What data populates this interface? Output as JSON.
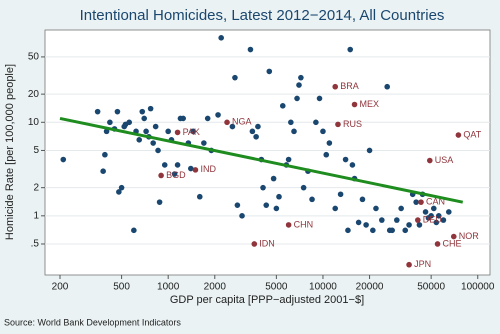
{
  "chart_data": {
    "type": "scatter",
    "title": "Intentional Homicides, Latest 2012−2014, All Countries",
    "x_label": "GDP per capita [PPP−adjusted 2001−$]",
    "y_label": "Homicide Rate [per 100,000 people]",
    "source": "Source: World Bank Development Indicators",
    "xlog": true,
    "ylog": true,
    "grid": true,
    "xlim": [
      160,
      120000
    ],
    "ylim": [
      0.233,
      97
    ],
    "xticks": [
      200,
      500,
      1000,
      2000,
      5000,
      10000,
      20000,
      50000,
      100000
    ],
    "yticks": [
      {
        "value": 0.5,
        "label": ".5"
      },
      1,
      2,
      5,
      10,
      20,
      50
    ],
    "series": [
      {
        "color": "#1a476f",
        "x": [
          210,
          350,
          400,
          420,
          380,
          390,
          450,
          470,
          480,
          500,
          520,
          530,
          560,
          600,
          620,
          650,
          680,
          700,
          720,
          750,
          770,
          800,
          830,
          860,
          880,
          950,
          1000,
          1050,
          1100,
          1150,
          1200,
          1250,
          1350,
          1400,
          1450,
          1600,
          1700,
          1800,
          1900,
          2100,
          2200,
          2600,
          2700,
          2800,
          3000,
          3400,
          3500,
          3700,
          3800,
          4000,
          4100,
          4300,
          4500,
          4800,
          5000,
          5200,
          5500,
          5800,
          6000,
          6200,
          6500,
          6800,
          7000,
          7200,
          7500,
          8000,
          8500,
          9000,
          9500,
          10000,
          10500,
          11000,
          12000,
          13000,
          14000,
          14500,
          15000,
          15500,
          16000,
          17000,
          18000,
          19000,
          20000,
          21000,
          22000,
          24000,
          26000,
          27000,
          28000,
          30000,
          32000,
          34000,
          36000,
          38000,
          40000,
          42000,
          44000,
          46000,
          48000,
          50000,
          52000,
          54000,
          56000,
          60000,
          65000
        ],
        "values": [
          4,
          13,
          8,
          10,
          3,
          4.5,
          8.5,
          13,
          1.8,
          2,
          9,
          9.5,
          10,
          0.7,
          8,
          6.5,
          13,
          11,
          8,
          7,
          14,
          6,
          9,
          5,
          1.4,
          3.5,
          8,
          6.5,
          2.8,
          3.5,
          11,
          11,
          6,
          3.2,
          8,
          1.6,
          6,
          11,
          5,
          12,
          80,
          9,
          30,
          1.3,
          1,
          60,
          8,
          7,
          9,
          4,
          2,
          1.3,
          35,
          2.5,
          1.2,
          1.6,
          15,
          3.5,
          4,
          10,
          8,
          18,
          25,
          30,
          2,
          3,
          1.5,
          10,
          18,
          8,
          4.5,
          6,
          1.2,
          1.7,
          4,
          0.7,
          60,
          3.5,
          2.5,
          0.85,
          1.5,
          0.8,
          5,
          0.7,
          1.2,
          0.9,
          24,
          0.7,
          0.7,
          0.9,
          1.2,
          0.7,
          0.8,
          1.7,
          1.4,
          0.8,
          1.7,
          1.1,
          0.95,
          1,
          1.2,
          0.85,
          1,
          0.9,
          1.1
        ]
      },
      {
        "color": "#90353b",
        "x": [
          12000,
          16000,
          12500,
          1150,
          2400,
          75000,
          49000,
          900,
          1500,
          43000,
          41000,
          6000,
          3600,
          70000,
          55000,
          36000
        ],
        "values": [
          24,
          15.5,
          9.5,
          7.8,
          10,
          7.3,
          3.9,
          2.7,
          3.1,
          1.4,
          0.9,
          0.8,
          0.5,
          0.6,
          0.5,
          0.3
        ],
        "labels": [
          "BRA",
          "MEX",
          "RUS",
          "PAK",
          "NGA",
          "QAT",
          "USA",
          "BGD",
          "IND",
          "CAN",
          "DEU",
          "CHN",
          "IDN",
          "NOR",
          "CHE",
          "JPN"
        ]
      }
    ],
    "fit": {
      "color": "#1e8c1e",
      "x": [
        200,
        80000
      ],
      "values": [
        11,
        1.4
      ]
    }
  }
}
